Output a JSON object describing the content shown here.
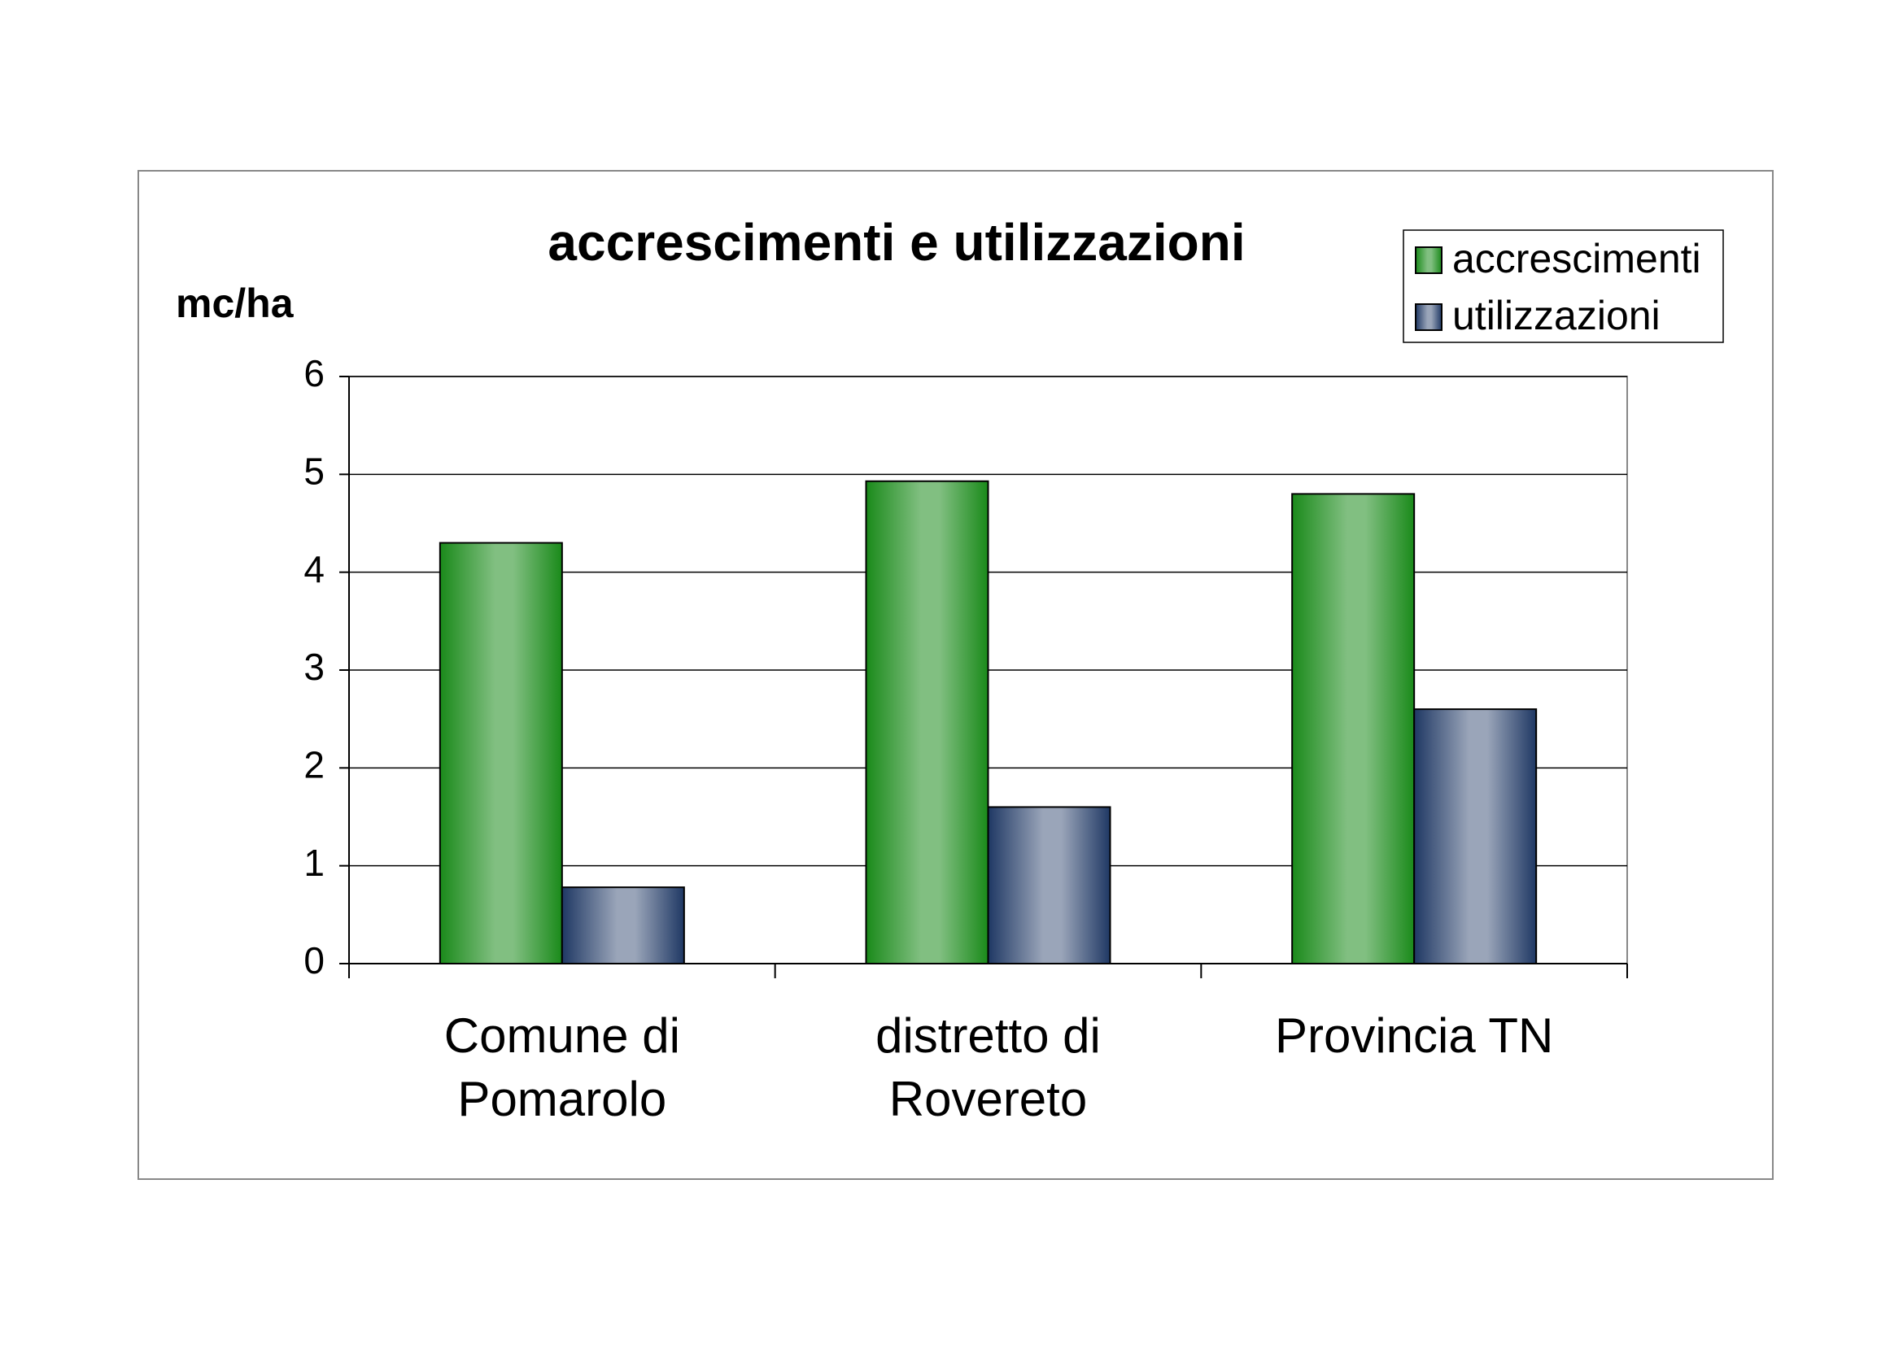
{
  "chart_data": {
    "type": "bar",
    "title": "accrescimenti e utilizzazioni",
    "y_label": "mc/ha",
    "categories": [
      "Comune di Pomarolo",
      "distretto di Rovereto",
      "Provincia TN"
    ],
    "series": [
      {
        "name": "accrescimenti",
        "color": "#1a8a1a",
        "values": [
          4.3,
          4.93,
          4.8
        ]
      },
      {
        "name": "utilizzazioni",
        "color": "#1f3864",
        "values": [
          0.78,
          1.6,
          2.6
        ]
      }
    ],
    "ylim": [
      0,
      6
    ],
    "yticks": [
      0,
      1,
      2,
      3,
      4,
      5,
      6
    ],
    "grid": true,
    "legend": "top-right"
  }
}
